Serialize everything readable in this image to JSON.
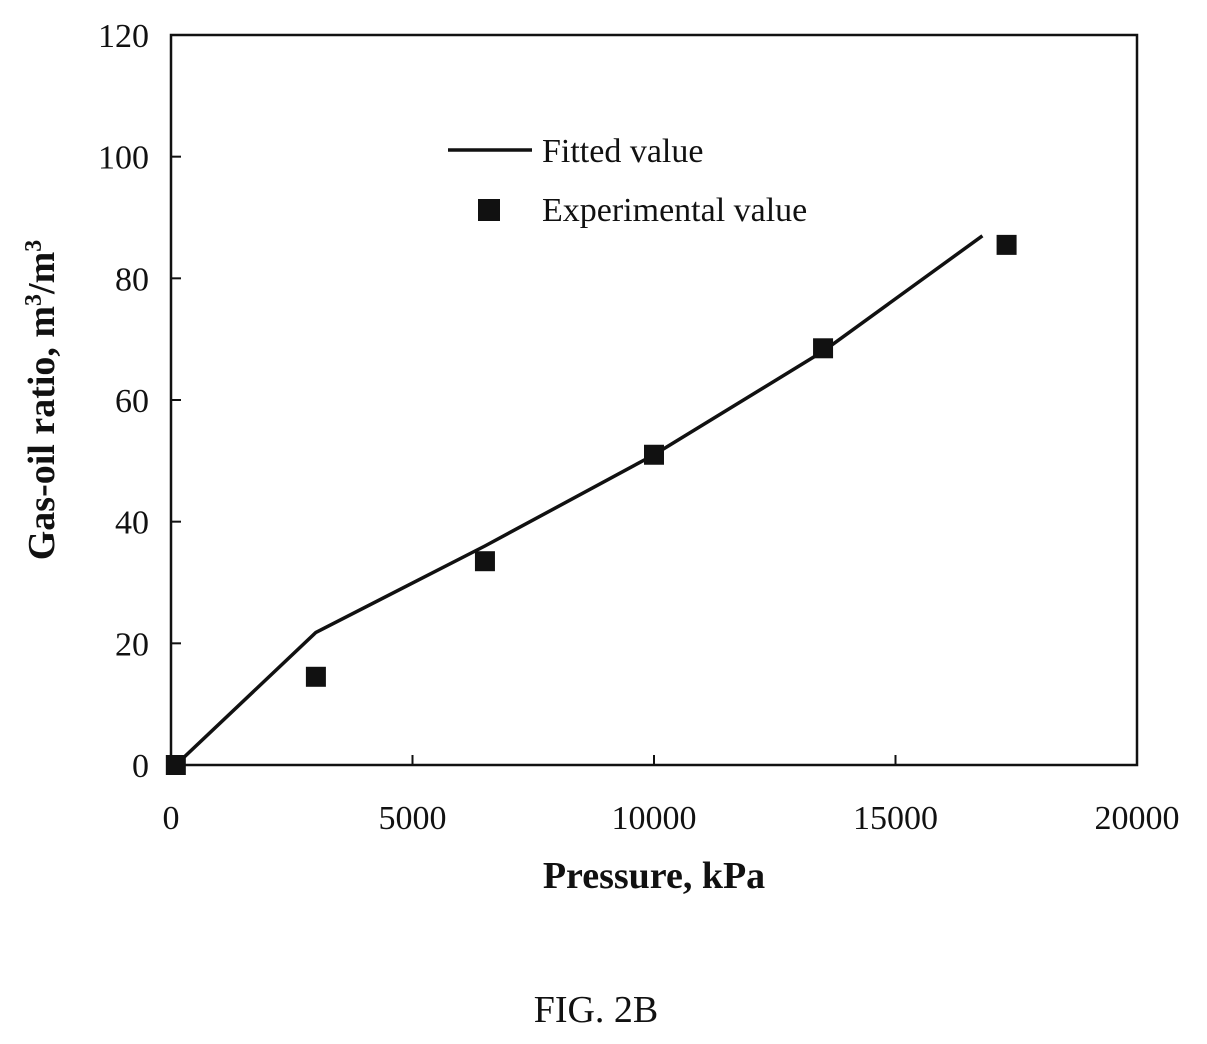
{
  "chart_data": {
    "type": "line",
    "xlabel": "Pressure, kPa",
    "ylabel_main": "Gas-oil ratio, m",
    "ylabel_sup1": "3",
    "ylabel_mid": "/m",
    "ylabel_sup2": "3",
    "xlim": [
      0,
      20000
    ],
    "ylim": [
      0,
      120
    ],
    "xticks": [
      0,
      5000,
      10000,
      15000,
      20000
    ],
    "yticks": [
      0,
      20,
      40,
      60,
      80,
      100,
      120
    ],
    "grid": false,
    "legend_position": "top-center",
    "series": [
      {
        "name": "Fitted value",
        "kind": "line",
        "color": "#111111",
        "x": [
          100,
          3000,
          6500,
          10000,
          13500,
          16800
        ],
        "y": [
          0,
          21.8,
          36,
          51,
          68,
          87
        ]
      },
      {
        "name": "Experimental value",
        "kind": "marker",
        "marker": "square",
        "color": "#111111",
        "x": [
          100,
          3000,
          6500,
          10000,
          13500,
          17300
        ],
        "y": [
          0,
          14.5,
          33.5,
          51,
          68.5,
          85.5
        ]
      }
    ]
  },
  "caption": "FIG. 2B"
}
